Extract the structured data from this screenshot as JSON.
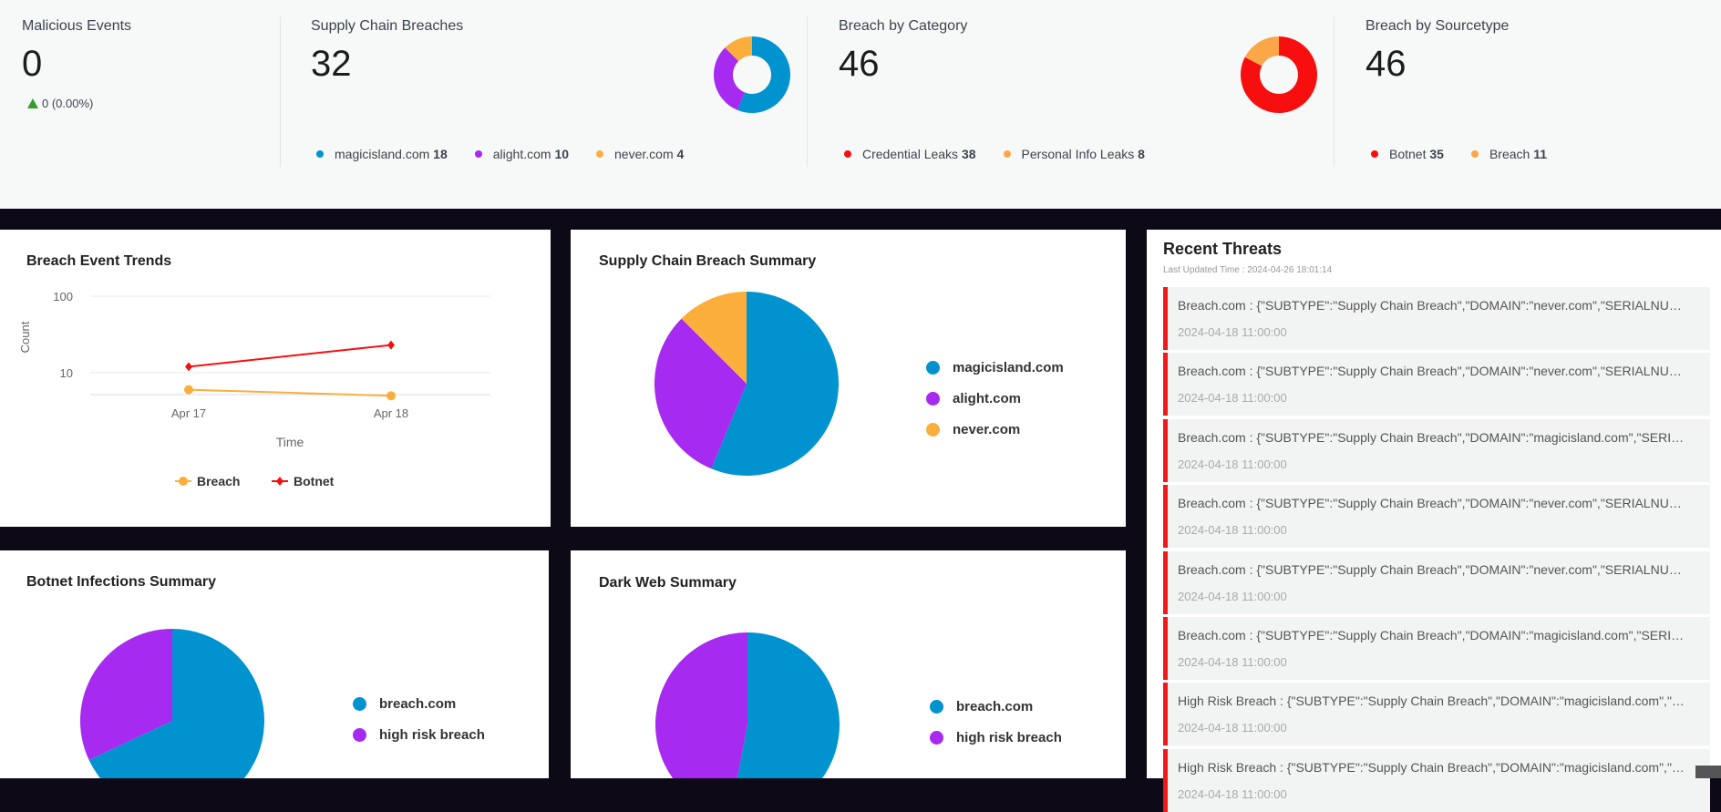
{
  "kpis": {
    "malicious": {
      "title": "Malicious Events",
      "value": "0",
      "delta": "0 (0.00%)",
      "delta_direction": "up"
    },
    "supply_chain": {
      "title": "Supply Chain Breaches",
      "value": "32",
      "legend": [
        {
          "label": "magicisland.com",
          "value": 18,
          "color": "#0093d0"
        },
        {
          "label": "alight.com",
          "value": 10,
          "color": "#a62af0"
        },
        {
          "label": "never.com",
          "value": 4,
          "color": "#fbae3c"
        }
      ]
    },
    "category": {
      "title": "Breach by Category",
      "value": "46",
      "legend": [
        {
          "label": "Credential Leaks",
          "value": 38,
          "color": "#f70f0f"
        },
        {
          "label": "Personal Info Leaks",
          "value": 8,
          "color": "#fba748"
        }
      ]
    },
    "sourcetype": {
      "title": "Breach by Sourcetype",
      "value": "46",
      "legend": [
        {
          "label": "Botnet",
          "value": 35,
          "color": "#f70f0f"
        },
        {
          "label": "Breach",
          "value": 11,
          "color": "#fba748"
        }
      ]
    }
  },
  "chart_data": [
    {
      "type": "line",
      "title": "Breach Event Trends",
      "xlabel": "Time",
      "ylabel": "Count",
      "yscale": "log",
      "ylim": [
        5,
        100
      ],
      "yticks": [
        "10",
        "100"
      ],
      "grid": true,
      "legend_position": "bottom",
      "categories": [
        "Apr 17",
        "Apr 18"
      ],
      "series": [
        {
          "name": "Breach",
          "values": [
            6,
            5
          ],
          "color": "#fbae3c",
          "marker": "circle"
        },
        {
          "name": "Botnet",
          "values": [
            12,
            23
          ],
          "color": "#f70f0f",
          "marker": "diamond"
        }
      ]
    },
    {
      "type": "pie",
      "title": "Supply Chain Breach Summary",
      "legend_position": "right",
      "slices": [
        {
          "label": "magicisland.com",
          "value": 18,
          "color": "#0093d0"
        },
        {
          "label": "alight.com",
          "value": 10,
          "color": "#a62af0"
        },
        {
          "label": "never.com",
          "value": 4,
          "color": "#fbae3c"
        }
      ]
    },
    {
      "type": "pie",
      "title": "Botnet Infections Summary",
      "legend_position": "right",
      "slices": [
        {
          "label": "breach.com",
          "value": 68,
          "color": "#0093d0"
        },
        {
          "label": "high risk breach",
          "value": 32,
          "color": "#a62af0"
        }
      ]
    },
    {
      "type": "pie",
      "title": "Dark Web Summary",
      "legend_position": "right",
      "slices": [
        {
          "label": "breach.com",
          "value": 53,
          "color": "#0093d0"
        },
        {
          "label": "high risk breach",
          "value": 47,
          "color": "#a62af0"
        }
      ]
    }
  ],
  "recent_threats": {
    "title": "Recent Threats",
    "updated": "Last Updated Time : 2024-04-26 18:01:14",
    "items": [
      {
        "message": "Breach.com : {\"SUBTYPE\":\"Supply Chain Breach\",\"DOMAIN\":\"never.com\",\"SERIALNUMBER\"",
        "time": "2024-04-18 11:00:00"
      },
      {
        "message": "Breach.com : {\"SUBTYPE\":\"Supply Chain Breach\",\"DOMAIN\":\"never.com\",\"SERIALNUMBER\"",
        "time": "2024-04-18 11:00:00"
      },
      {
        "message": "Breach.com : {\"SUBTYPE\":\"Supply Chain Breach\",\"DOMAIN\":\"magicisland.com\",\"SERIALNUMBER\"",
        "time": "2024-04-18 11:00:00"
      },
      {
        "message": "Breach.com : {\"SUBTYPE\":\"Supply Chain Breach\",\"DOMAIN\":\"never.com\",\"SERIALNUMBER\"",
        "time": "2024-04-18 11:00:00"
      },
      {
        "message": "Breach.com : {\"SUBTYPE\":\"Supply Chain Breach\",\"DOMAIN\":\"never.com\",\"SERIALNUMBER\"",
        "time": "2024-04-18 11:00:00"
      },
      {
        "message": "Breach.com : {\"SUBTYPE\":\"Supply Chain Breach\",\"DOMAIN\":\"magicisland.com\",\"SERIALNUMBER\"",
        "time": "2024-04-18 11:00:00"
      },
      {
        "message": "High Risk Breach : {\"SUBTYPE\":\"Supply Chain Breach\",\"DOMAIN\":\"magicisland.com\",\"SERIALNUMBER\"",
        "time": "2024-04-18 11:00:00"
      },
      {
        "message": "High Risk Breach : {\"SUBTYPE\":\"Supply Chain Breach\",\"DOMAIN\":\"magicisland.com\",\"SERIALNUMBER\"",
        "time": "2024-04-18 11:00:00"
      }
    ]
  }
}
